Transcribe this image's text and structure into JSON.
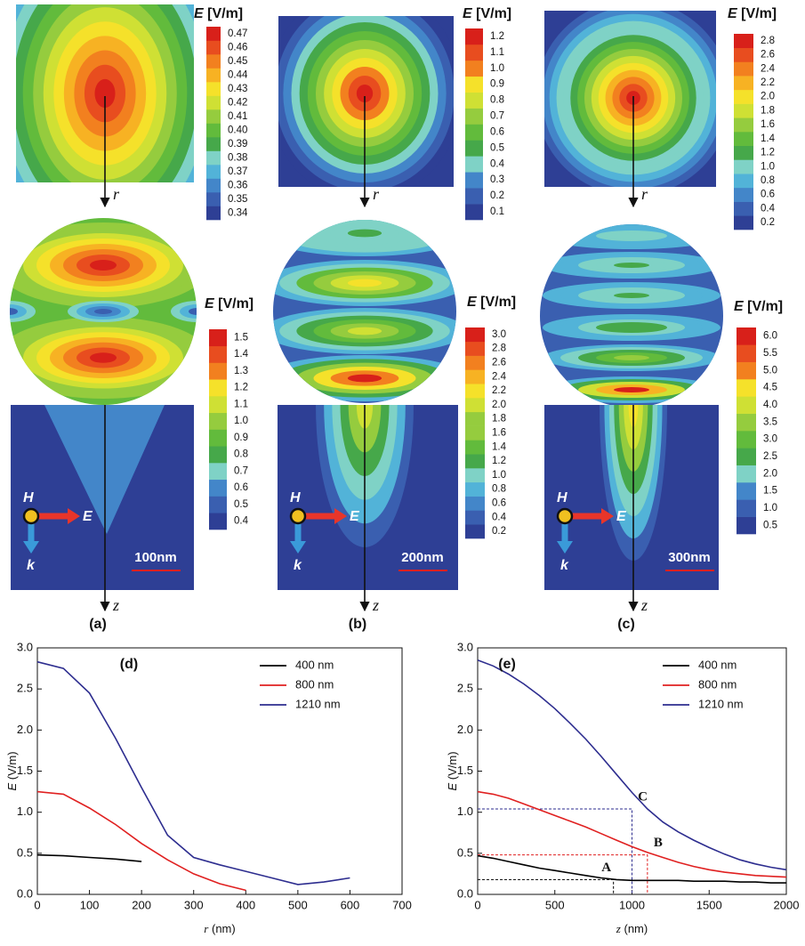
{
  "chart_data": [
    {
      "type": "line",
      "panel_label": "(d)",
      "x_symbol": "r",
      "x_unit": "(nm)",
      "y_symbol": "E",
      "y_unit": "(V/m)",
      "x": [
        0,
        50,
        100,
        150,
        200,
        250,
        300,
        350,
        400,
        450,
        500,
        550,
        600
      ],
      "series": [
        {
          "name": "400 nm",
          "color": "#000000",
          "values": [
            0.48,
            0.47,
            0.45,
            0.43,
            0.4,
            null,
            null,
            null,
            null,
            null,
            null,
            null,
            null
          ]
        },
        {
          "name": "800 nm",
          "color": "#e02020",
          "values": [
            1.25,
            1.22,
            1.05,
            0.85,
            0.62,
            0.42,
            0.25,
            0.13,
            0.05,
            null,
            null,
            null,
            null
          ]
        },
        {
          "name": "1210 nm",
          "color": "#2d2d8f",
          "values": [
            2.83,
            2.75,
            2.45,
            1.9,
            1.3,
            0.72,
            0.45,
            0.36,
            0.28,
            0.2,
            0.12,
            0.15,
            0.2
          ]
        }
      ],
      "xlim": [
        0,
        700
      ],
      "xticks": [
        0,
        100,
        200,
        300,
        400,
        500,
        600,
        700
      ],
      "ylim": [
        0,
        3
      ],
      "yticks": [
        {
          "value": 0,
          "label": "0.0"
        },
        0.5,
        {
          "value": 1,
          "label": "1.0"
        },
        1.5,
        {
          "value": 2,
          "label": "2.0"
        },
        2.5,
        {
          "value": 3,
          "label": "3.0"
        }
      ],
      "legend": "upper right"
    },
    {
      "type": "line",
      "panel_label": "(e)",
      "x_symbol": "z",
      "x_unit": "(nm)",
      "y_symbol": "E",
      "y_unit": "(V/m)",
      "x": [
        0,
        100,
        200,
        300,
        400,
        500,
        600,
        700,
        800,
        900,
        1000,
        1100,
        1200,
        1300,
        1400,
        1500,
        1600,
        1700,
        1800,
        1900,
        2000
      ],
      "series": [
        {
          "name": "400 nm",
          "color": "#000000",
          "values": [
            0.47,
            0.44,
            0.4,
            0.36,
            0.32,
            0.29,
            0.26,
            0.23,
            0.2,
            0.18,
            0.17,
            0.17,
            0.17,
            0.17,
            0.16,
            0.16,
            0.16,
            0.15,
            0.15,
            0.14,
            0.14
          ]
        },
        {
          "name": "800 nm",
          "color": "#e02020",
          "values": [
            1.25,
            1.22,
            1.17,
            1.1,
            1.03,
            0.96,
            0.89,
            0.82,
            0.74,
            0.66,
            0.58,
            0.51,
            0.45,
            0.39,
            0.34,
            0.3,
            0.27,
            0.25,
            0.23,
            0.22,
            0.21
          ]
        },
        {
          "name": "1210 nm",
          "color": "#2d2d8f",
          "values": [
            2.85,
            2.78,
            2.68,
            2.56,
            2.42,
            2.26,
            2.08,
            1.89,
            1.68,
            1.46,
            1.24,
            1.04,
            0.88,
            0.76,
            0.66,
            0.57,
            0.49,
            0.42,
            0.37,
            0.33,
            0.3
          ]
        }
      ],
      "xlim": [
        0,
        2000
      ],
      "xticks": [
        0,
        500,
        1000,
        1500,
        2000
      ],
      "ylim": [
        0,
        3
      ],
      "yticks": [
        {
          "value": 0,
          "label": "0.0"
        },
        0.5,
        {
          "value": 1,
          "label": "1.0"
        },
        1.5,
        {
          "value": 2,
          "label": "2.0"
        },
        2.5,
        {
          "value": 3,
          "label": "3.0"
        }
      ],
      "legend": "upper right",
      "annotations": [
        {
          "label": "A",
          "x": 880,
          "y": 0.18,
          "color": "#000000"
        },
        {
          "label": "B",
          "x": 1100,
          "y": 0.48,
          "color": "#e02020"
        },
        {
          "label": "C",
          "x": 1000,
          "y": 1.04,
          "color": "#2d2d8f"
        }
      ]
    }
  ],
  "panels": [
    {
      "label": "(a)",
      "axis_r": "r",
      "axis_z": "z",
      "field_symbol": "E",
      "field_unit": "[V/m]",
      "scale_bar": "100nm",
      "h_label": "H",
      "e_label": "E",
      "k_label": "k",
      "top_colorbar": [
        0.34,
        0.35,
        0.36,
        0.37,
        0.38,
        0.39,
        {
          "value": 0.4,
          "label": "0.40"
        },
        0.41,
        0.42,
        0.43,
        0.44,
        0.45,
        0.46,
        0.47
      ],
      "bottom_colorbar": [
        0.4,
        0.5,
        0.6,
        0.7,
        0.8,
        0.9,
        {
          "value": 1,
          "label": "1.0"
        },
        1.1,
        1.2,
        1.3,
        1.4,
        1.5
      ]
    },
    {
      "label": "(b)",
      "axis_r": "r",
      "axis_z": "z",
      "field_symbol": "E",
      "field_unit": "[V/m]",
      "scale_bar": "200nm",
      "h_label": "H",
      "e_label": "E",
      "k_label": "k",
      "top_colorbar": [
        0.1,
        0.2,
        0.3,
        0.4,
        0.5,
        0.6,
        0.7,
        0.8,
        0.9,
        {
          "value": 1,
          "label": "1.0"
        },
        1.1,
        1.2
      ],
      "bottom_colorbar": [
        0.2,
        0.4,
        0.6,
        0.8,
        {
          "value": 1,
          "label": "1.0"
        },
        1.2,
        1.4,
        1.6,
        1.8,
        {
          "value": 2,
          "label": "2.0"
        },
        2.2,
        2.4,
        2.6,
        2.8,
        {
          "value": 3,
          "label": "3.0"
        }
      ]
    },
    {
      "label": "(c)",
      "axis_r": "r",
      "axis_z": "z",
      "field_symbol": "E",
      "field_unit": "[V/m]",
      "scale_bar": "300nm",
      "h_label": "H",
      "e_label": "E",
      "k_label": "k",
      "top_colorbar": [
        0.2,
        0.4,
        0.6,
        0.8,
        {
          "value": 1,
          "label": "1.0"
        },
        1.2,
        1.4,
        1.6,
        1.8,
        {
          "value": 2,
          "label": "2.0"
        },
        2.2,
        2.4,
        2.6,
        2.8
      ],
      "bottom_colorbar": [
        0.5,
        {
          "value": 1,
          "label": "1.0"
        },
        1.5,
        {
          "value": 2,
          "label": "2.0"
        },
        2.5,
        {
          "value": 3,
          "label": "3.0"
        },
        3.5,
        {
          "value": 4,
          "label": "4.0"
        },
        4.5,
        {
          "value": 5,
          "label": "5.0"
        },
        5.5,
        {
          "value": 6,
          "label": "6.0"
        }
      ]
    }
  ]
}
